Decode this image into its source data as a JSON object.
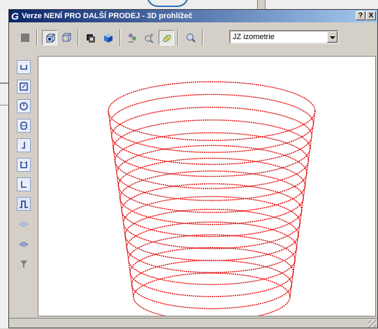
{
  "window": {
    "logo": "G",
    "title": "Verze NENÍ PRO DALŠÍ PRODEJ - 3D prohlížeč",
    "help_label": "?",
    "close_label": "X"
  },
  "toolbar": {
    "buttons": [
      "stop-icon",
      "wireframe-box-icon",
      "parallel-box-icon",
      "shade-settings-icon",
      "shaded-box-icon",
      "visual-styles-icon",
      "zoom-extents-icon",
      "orbit-icon",
      "zoom-icon"
    ],
    "view_select": {
      "value": "JZ izometrie"
    }
  },
  "left_toolbar": {
    "buttons": [
      "view-bottom-icon",
      "view-front-icon",
      "view-left-icon",
      "view-right-icon",
      "view-back-icon",
      "view-top-icon",
      "view-iso-icon",
      "view-curve-icon",
      "grid-plane-icon",
      "mesh-icon",
      "filter-icon"
    ]
  },
  "model": {
    "description_color": "#e00000",
    "rings": 16
  },
  "colors": {
    "title_start": "#0a246a",
    "title_end": "#a6caf0",
    "model": "#e00000"
  }
}
